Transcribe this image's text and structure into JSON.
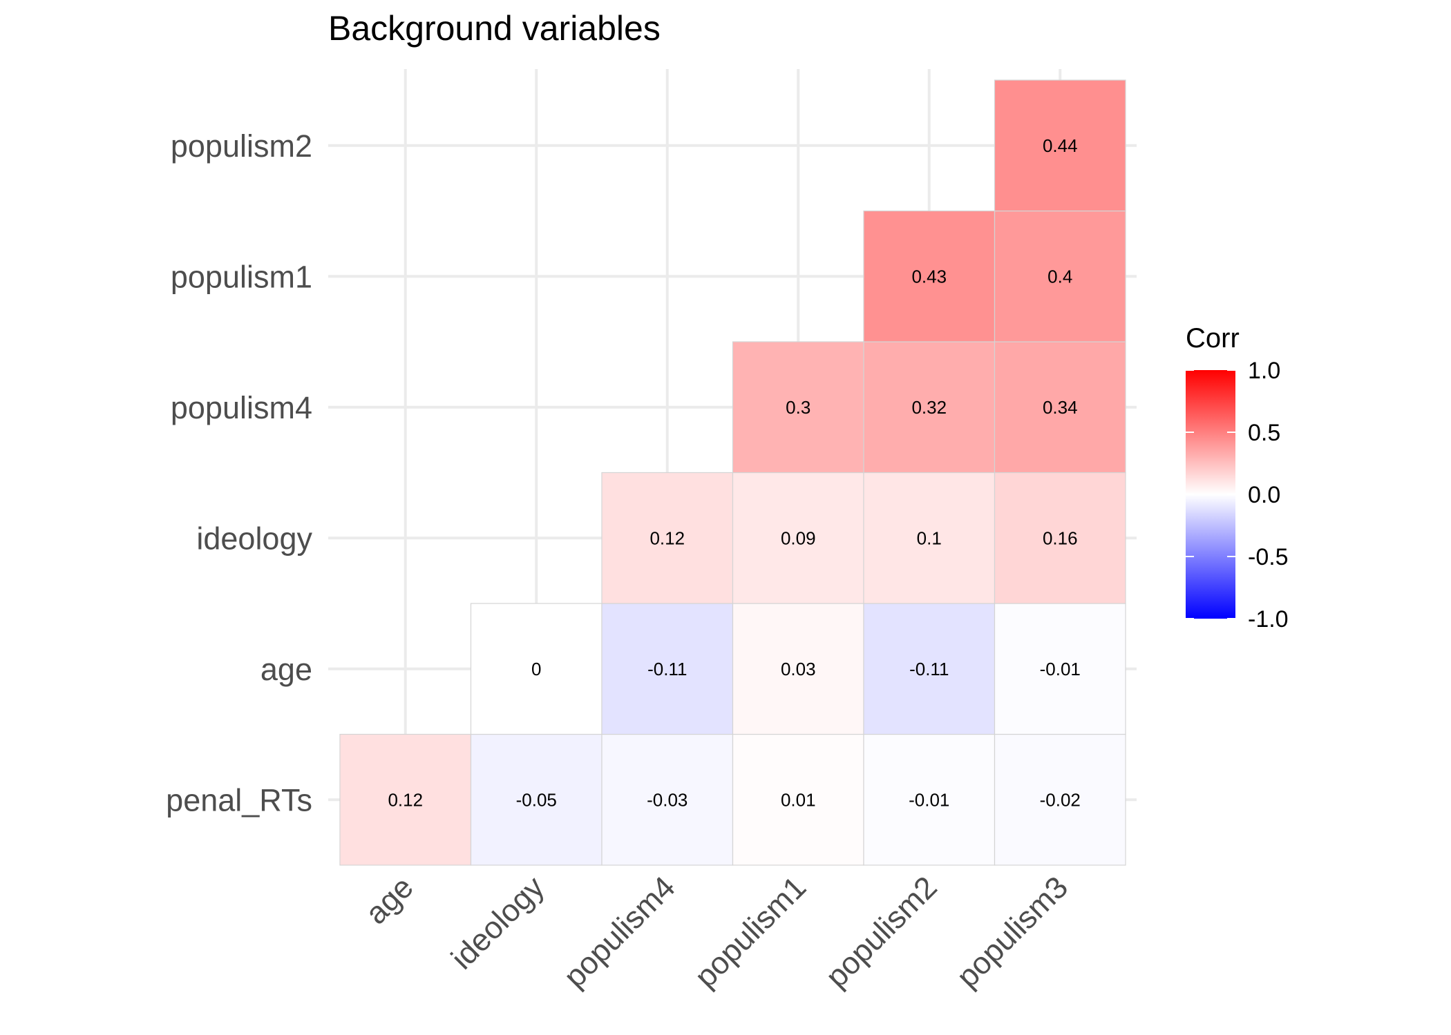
{
  "chart_data": {
    "type": "heatmap",
    "title": "Background variables",
    "x_categories": [
      "age",
      "ideology",
      "populism4",
      "populism1",
      "populism2",
      "populism3"
    ],
    "y_categories": [
      "penal_RTs",
      "age",
      "ideology",
      "populism4",
      "populism1",
      "populism2"
    ],
    "cells": [
      {
        "x": "age",
        "y": "penal_RTs",
        "value": 0.12,
        "label": "0.12"
      },
      {
        "x": "ideology",
        "y": "penal_RTs",
        "value": -0.05,
        "label": "-0.05"
      },
      {
        "x": "populism4",
        "y": "penal_RTs",
        "value": -0.03,
        "label": "-0.03"
      },
      {
        "x": "populism1",
        "y": "penal_RTs",
        "value": 0.01,
        "label": "0.01"
      },
      {
        "x": "populism2",
        "y": "penal_RTs",
        "value": -0.01,
        "label": "-0.01"
      },
      {
        "x": "populism3",
        "y": "penal_RTs",
        "value": -0.02,
        "label": "-0.02"
      },
      {
        "x": "ideology",
        "y": "age",
        "value": 0,
        "label": "0"
      },
      {
        "x": "populism4",
        "y": "age",
        "value": -0.11,
        "label": "-0.11"
      },
      {
        "x": "populism1",
        "y": "age",
        "value": 0.03,
        "label": "0.03"
      },
      {
        "x": "populism2",
        "y": "age",
        "value": -0.11,
        "label": "-0.11"
      },
      {
        "x": "populism3",
        "y": "age",
        "value": -0.01,
        "label": "-0.01"
      },
      {
        "x": "populism4",
        "y": "ideology",
        "value": 0.12,
        "label": "0.12"
      },
      {
        "x": "populism1",
        "y": "ideology",
        "value": 0.09,
        "label": "0.09"
      },
      {
        "x": "populism2",
        "y": "ideology",
        "value": 0.1,
        "label": "0.1"
      },
      {
        "x": "populism3",
        "y": "ideology",
        "value": 0.16,
        "label": "0.16"
      },
      {
        "x": "populism1",
        "y": "populism4",
        "value": 0.3,
        "label": "0.3"
      },
      {
        "x": "populism2",
        "y": "populism4",
        "value": 0.32,
        "label": "0.32"
      },
      {
        "x": "populism3",
        "y": "populism4",
        "value": 0.34,
        "label": "0.34"
      },
      {
        "x": "populism2",
        "y": "populism1",
        "value": 0.43,
        "label": "0.43"
      },
      {
        "x": "populism3",
        "y": "populism1",
        "value": 0.4,
        "label": "0.4"
      },
      {
        "x": "populism3",
        "y": "populism2",
        "value": 0.44,
        "label": "0.44"
      }
    ],
    "legend": {
      "title": "Corr",
      "range": [
        -1,
        1
      ],
      "ticks": [
        1.0,
        0.5,
        0.0,
        -0.5,
        -1.0
      ],
      "tick_labels": [
        "1.0",
        "0.5",
        "0.0",
        "-0.5",
        "-1.0"
      ],
      "low_color": "#0000FF",
      "mid_color": "#FFFFFF",
      "high_color": "#FF0000",
      "placement": "right"
    },
    "grid": true
  }
}
